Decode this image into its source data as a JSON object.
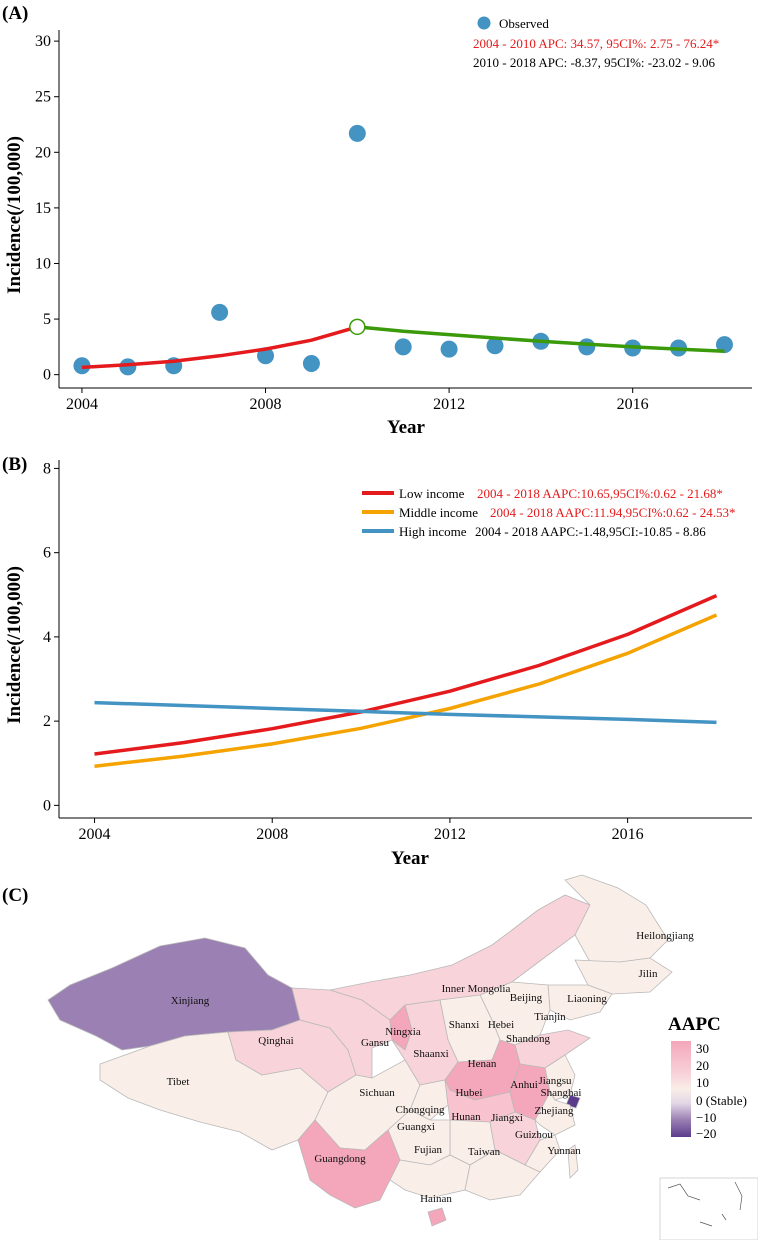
{
  "chart_data": [
    {
      "id": "A",
      "panel_label": "(A)",
      "type": "scatter",
      "xlabel": "Year",
      "ylabel": "Incidence(/100,000)",
      "xlim": [
        2003.5,
        2018.6
      ],
      "ylim": [
        -1.2,
        31
      ],
      "xticks": [
        2004,
        2008,
        2012,
        2016
      ],
      "yticks": [
        0,
        5,
        10,
        15,
        20,
        25,
        30
      ],
      "observed": {
        "name": "Observed",
        "color": "#4393c3",
        "x": [
          2004,
          2005,
          2006,
          2007,
          2008,
          2009,
          2010,
          2011,
          2012,
          2013,
          2014,
          2015,
          2016,
          2017,
          2018
        ],
        "y": [
          0.8,
          0.7,
          0.8,
          5.6,
          1.7,
          1.0,
          21.7,
          2.5,
          2.3,
          2.6,
          3.0,
          2.5,
          2.4,
          2.4,
          2.7
        ]
      },
      "fitted": [
        {
          "name": "2004 - 2010 APC: 34.57, 95CI%: 2.75 - 76.24*",
          "color": "#e41a1c",
          "x": [
            2004,
            2005,
            2006,
            2007,
            2008,
            2009,
            2010
          ],
          "y": [
            0.65,
            0.9,
            1.2,
            1.7,
            2.3,
            3.1,
            4.3
          ]
        },
        {
          "name": "2010 - 2018 APC: -8.37, 95CI%: -23.02 - 9.06",
          "color": "#3a9a0a",
          "x": [
            2010,
            2011,
            2012,
            2013,
            2014,
            2015,
            2016,
            2017,
            2018
          ],
          "y": [
            4.3,
            3.9,
            3.6,
            3.3,
            3.0,
            2.75,
            2.5,
            2.3,
            2.1
          ]
        }
      ],
      "joinpoint": {
        "x": 2010,
        "y": 4.3,
        "color": "#3a9a0a"
      }
    },
    {
      "id": "B",
      "panel_label": "(B)",
      "type": "line",
      "xlabel": "Year",
      "ylabel": "Incidence(/100,000)",
      "xlim": [
        2003.2,
        2018.8
      ],
      "ylim": [
        -0.3,
        8.2
      ],
      "xticks": [
        2004,
        2008,
        2012,
        2016
      ],
      "yticks": [
        0,
        2,
        4,
        6,
        8
      ],
      "series": [
        {
          "name": "Low income",
          "stat": "2004 - 2018 AAPC:10.65,95CI%:0.62 - 21.68*",
          "color": "#e41a1c",
          "stat_color": "#e41a1c",
          "x": [
            2004,
            2006,
            2008,
            2010,
            2012,
            2014,
            2016,
            2018
          ],
          "y": [
            1.22,
            1.49,
            1.82,
            2.22,
            2.71,
            3.32,
            4.06,
            4.98
          ]
        },
        {
          "name": "Middle income",
          "stat": "2004 - 2018 AAPC:11.94,95CI%:0.62 - 24.53*",
          "color": "#f5a300",
          "stat_color": "#e41a1c",
          "x": [
            2004,
            2006,
            2008,
            2010,
            2012,
            2014,
            2016,
            2018
          ],
          "y": [
            0.93,
            1.17,
            1.46,
            1.83,
            2.3,
            2.88,
            3.61,
            4.52
          ]
        },
        {
          "name": "High income",
          "stat": "2004 - 2018 AAPC:-1.48,95CI:-10.85 - 8.86",
          "color": "#4393c3",
          "stat_color": "#000000",
          "x": [
            2004,
            2006,
            2008,
            2010,
            2012,
            2014,
            2016,
            2018
          ],
          "y": [
            2.44,
            2.37,
            2.3,
            2.23,
            2.16,
            2.1,
            2.04,
            1.97
          ]
        }
      ]
    },
    {
      "id": "C",
      "panel_label": "(C)",
      "type": "heatmap",
      "legend_title": "AAPC",
      "legend_ticks": [
        "30",
        "20",
        "10",
        "0 (Stable)",
        "−10",
        "−20"
      ],
      "color_scale": [
        "#f4a6ba",
        "#f8d3da",
        "#faeee8",
        "#e3d6e6",
        "#9b80b3",
        "#5b3c8c"
      ],
      "provinces": [
        "Xinjiang",
        "Tibet",
        "Qinghai",
        "Gansu",
        "Inner Mongolia",
        "Heilongjiang",
        "Jilin",
        "Liaoning",
        "Beijing",
        "Tianjin",
        "Hebei",
        "Shanxi",
        "Ningxia",
        "Shaanxi",
        "Shandong",
        "Henan",
        "Sichuan",
        "Chongqing",
        "Hubei",
        "Anhui",
        "Jiangsu",
        "Shanghai",
        "Zhejiang",
        "Hunan",
        "Jiangxi",
        "Guizhou",
        "Yunnan",
        "Guangxi",
        "Guangdong",
        "Fujian",
        "Taiwan",
        "Hainan"
      ]
    }
  ]
}
